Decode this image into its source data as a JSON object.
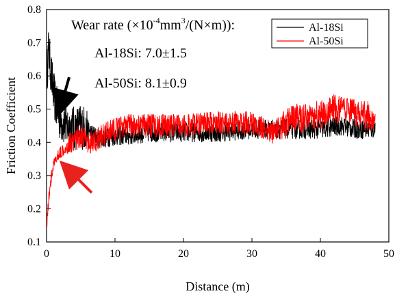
{
  "chart_data": {
    "type": "line",
    "xlabel": "Distance (m)",
    "ylabel": "Friction Coefficient",
    "xlim": [
      0,
      50
    ],
    "ylim": [
      0.1,
      0.8
    ],
    "xticks": [
      "0",
      "10",
      "20",
      "30",
      "40",
      "50"
    ],
    "yticks": [
      "0.1",
      "0.2",
      "0.3",
      "0.4",
      "0.5",
      "0.6",
      "0.7",
      "0.8"
    ],
    "grid": false,
    "legend_position": "top-right",
    "series": [
      {
        "name": "Al-18Si",
        "color": "#000000",
        "x": [
          0,
          0.3,
          0.6,
          1,
          1.5,
          2,
          2.5,
          3,
          4,
          5,
          6,
          7,
          8,
          10,
          12,
          15,
          20,
          25,
          30,
          35,
          40,
          43,
          45,
          48
        ],
        "y": [
          0.6,
          0.68,
          0.62,
          0.55,
          0.5,
          0.47,
          0.46,
          0.45,
          0.44,
          0.45,
          0.44,
          0.42,
          0.41,
          0.42,
          0.42,
          0.43,
          0.43,
          0.43,
          0.44,
          0.44,
          0.44,
          0.45,
          0.44,
          0.44
        ]
      },
      {
        "name": "Al-50Si",
        "color": "#ff0000",
        "x": [
          0,
          0.2,
          0.5,
          1,
          1.5,
          2,
          3,
          4,
          5,
          6,
          7,
          8,
          10,
          12,
          15,
          20,
          25,
          30,
          33,
          35,
          38,
          40,
          42,
          44,
          46,
          48
        ],
        "y": [
          0.15,
          0.2,
          0.27,
          0.33,
          0.35,
          0.37,
          0.39,
          0.41,
          0.42,
          0.4,
          0.4,
          0.42,
          0.44,
          0.45,
          0.45,
          0.45,
          0.46,
          0.46,
          0.43,
          0.46,
          0.48,
          0.48,
          0.5,
          0.49,
          0.48,
          0.48
        ]
      }
    ],
    "annotations": {
      "title_line": "Wear rate (×10",
      "exp1": "-4",
      "mid": "mm",
      "exp2": "3",
      "tail": "/(N×m)):",
      "line1": "Al-18Si: 7.0±1.5",
      "line2": "Al-50Si: 8.1±0.9"
    },
    "arrows": [
      {
        "label": "black-arrow",
        "color": "#000000"
      },
      {
        "label": "red-arrow",
        "color": "#e8231f"
      }
    ]
  }
}
